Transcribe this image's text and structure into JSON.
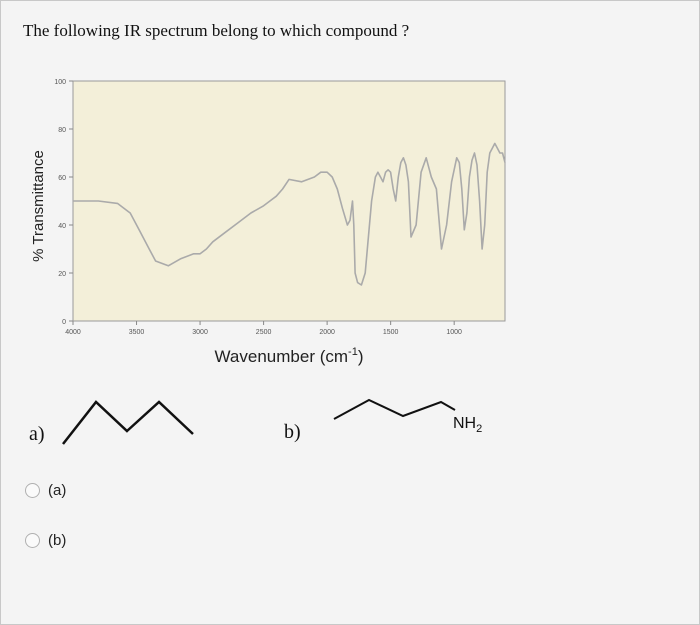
{
  "question": "The following IR spectrum belong to which compound ?",
  "chart_data": {
    "type": "line",
    "xlabel": "Wavenumber (cm",
    "xlabel_sup": "-1",
    "xlabel_close": ")",
    "ylabel": "% Transmittance",
    "xlim": [
      4000,
      600
    ],
    "ylim": [
      0,
      100
    ],
    "x_ticks": [
      "4000",
      "3500",
      "3000",
      "2500",
      "2000",
      "1500",
      "1000"
    ],
    "y_ticks": [
      "0",
      "20",
      "40",
      "60",
      "80",
      "100"
    ],
    "plot_background": "#f3efd9",
    "line_color": "#aaaaaa",
    "series": [
      {
        "x": [
          4000,
          3800,
          3650,
          3550,
          3480,
          3400,
          3350,
          3300,
          3250,
          3150,
          3050,
          3000,
          2950,
          2900,
          2800,
          2700,
          2600,
          2500,
          2450,
          2400,
          2350,
          2300,
          2200,
          2100,
          2050,
          2000,
          1960,
          1920,
          1880,
          1840,
          1820,
          1800,
          1790,
          1780,
          1760,
          1730,
          1700,
          1650,
          1620,
          1600,
          1580,
          1560,
          1540,
          1520,
          1500,
          1480,
          1460,
          1440,
          1420,
          1400,
          1380,
          1360,
          1340,
          1300,
          1260,
          1220,
          1180,
          1140,
          1100,
          1060,
          1020,
          980,
          960,
          940,
          920,
          900,
          880,
          860,
          840,
          820,
          800,
          780,
          760,
          740,
          720,
          700,
          680,
          660,
          640,
          620,
          600
        ],
        "y": [
          50,
          50,
          49,
          45,
          38,
          30,
          25,
          24,
          23,
          26,
          28,
          28,
          30,
          33,
          37,
          41,
          45,
          48,
          50,
          52,
          55,
          59,
          58,
          60,
          62,
          62,
          60,
          55,
          47,
          40,
          42,
          50,
          40,
          20,
          16,
          15,
          20,
          50,
          60,
          62,
          60,
          58,
          62,
          63,
          62,
          55,
          50,
          60,
          66,
          68,
          65,
          58,
          35,
          40,
          62,
          68,
          60,
          55,
          30,
          40,
          58,
          68,
          66,
          55,
          38,
          45,
          60,
          67,
          70,
          65,
          50,
          30,
          40,
          62,
          70,
          72,
          74,
          72,
          70,
          70,
          66
        ]
      }
    ]
  },
  "option_a_label": "a)",
  "option_b_label": "b)",
  "nh2_label": "NH",
  "nh2_sub": "2",
  "choices": [
    {
      "text": "(a)"
    },
    {
      "text": "(b)"
    }
  ]
}
